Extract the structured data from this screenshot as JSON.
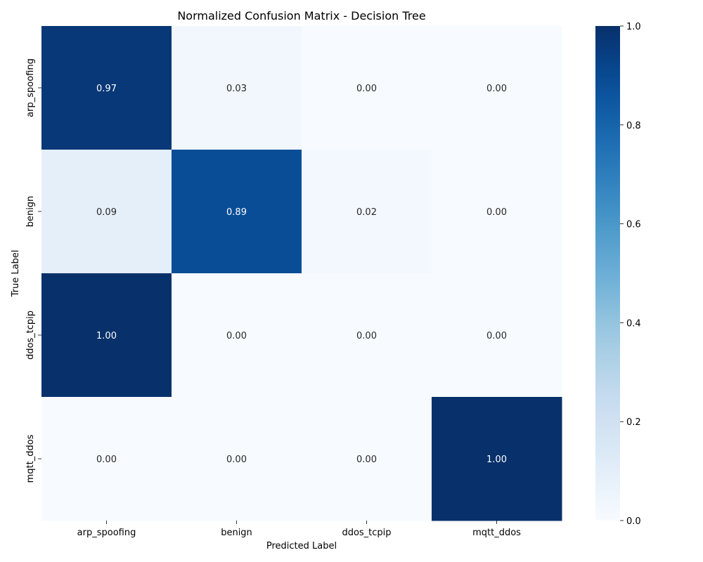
{
  "chart_data": {
    "type": "heatmap",
    "title": "Normalized Confusion Matrix - Decision Tree",
    "xlabel": "Predicted Label",
    "ylabel": "True Label",
    "x_categories": [
      "arp_spoofing",
      "benign",
      "ddos_tcpip",
      "mqtt_ddos"
    ],
    "y_categories": [
      "arp_spoofing",
      "benign",
      "ddos_tcpip",
      "mqtt_ddos"
    ],
    "values": [
      [
        0.97,
        0.03,
        0.0,
        0.0
      ],
      [
        0.09,
        0.89,
        0.02,
        0.0
      ],
      [
        1.0,
        0.0,
        0.0,
        0.0
      ],
      [
        0.0,
        0.0,
        0.0,
        1.0
      ]
    ],
    "cell_labels": [
      [
        "0.97",
        "0.03",
        "0.00",
        "0.00"
      ],
      [
        "0.09",
        "0.89",
        "0.02",
        "0.00"
      ],
      [
        "1.00",
        "0.00",
        "0.00",
        "0.00"
      ],
      [
        "0.00",
        "0.00",
        "0.00",
        "1.00"
      ]
    ],
    "colorbar": {
      "range": [
        0.0,
        1.0
      ],
      "ticks": [
        "0.0",
        "0.2",
        "0.4",
        "0.6",
        "0.8",
        "1.0"
      ],
      "colormap": "Blues"
    },
    "colors": {
      "low": "#f7fbff",
      "high": "#08306b"
    }
  }
}
